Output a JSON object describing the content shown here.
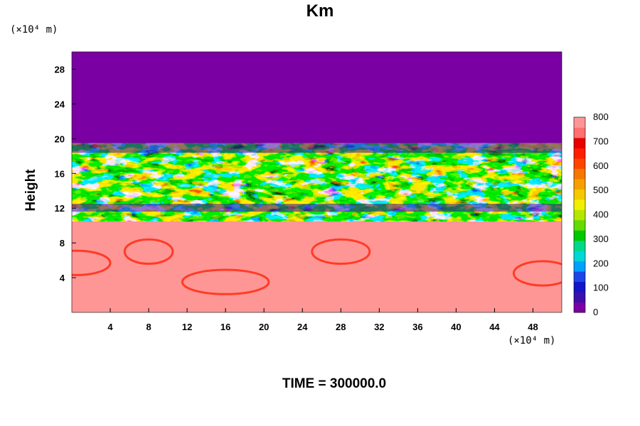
{
  "chart_data": {
    "type": "heatmap",
    "title": "Km",
    "ylabel": "Height",
    "x_unit": "(×10⁴ m)",
    "y_unit": "(×10⁴ m)",
    "xlim": [
      0,
      51
    ],
    "ylim": [
      0,
      30
    ],
    "x_ticks": [
      "4",
      "8",
      "12",
      "16",
      "20",
      "24",
      "28",
      "32",
      "36",
      "40",
      "44",
      "48"
    ],
    "y_ticks": [
      "4",
      "8",
      "12",
      "16",
      "20",
      "24",
      "28"
    ],
    "colorbar": {
      "range": [
        0,
        800
      ],
      "ticks": [
        "0",
        "100",
        "200",
        "300",
        "400",
        "500",
        "600",
        "700",
        "800"
      ],
      "colors": [
        "#7a00a3",
        "#3c0fa8",
        "#1414c8",
        "#1e46e6",
        "#00a0ff",
        "#00d7d7",
        "#00d88a",
        "#00c800",
        "#64dc00",
        "#b4e600",
        "#f0f000",
        "#f5c800",
        "#f5a000",
        "#f57800",
        "#ff4600",
        "#ff1e00",
        "#e60000",
        "#ff7070",
        "#ff9696"
      ]
    },
    "regions": {
      "upper_layer": {
        "y": [
          19.5,
          30
        ],
        "value": 0
      },
      "lower_layer": {
        "y": [
          0,
          10.5
        ],
        "value": 800
      },
      "turbulent_bands_y": [
        [
          17,
          19.5
        ],
        [
          10.5,
          12.5
        ]
      ]
    },
    "footer": "TIME = 300000.0"
  }
}
